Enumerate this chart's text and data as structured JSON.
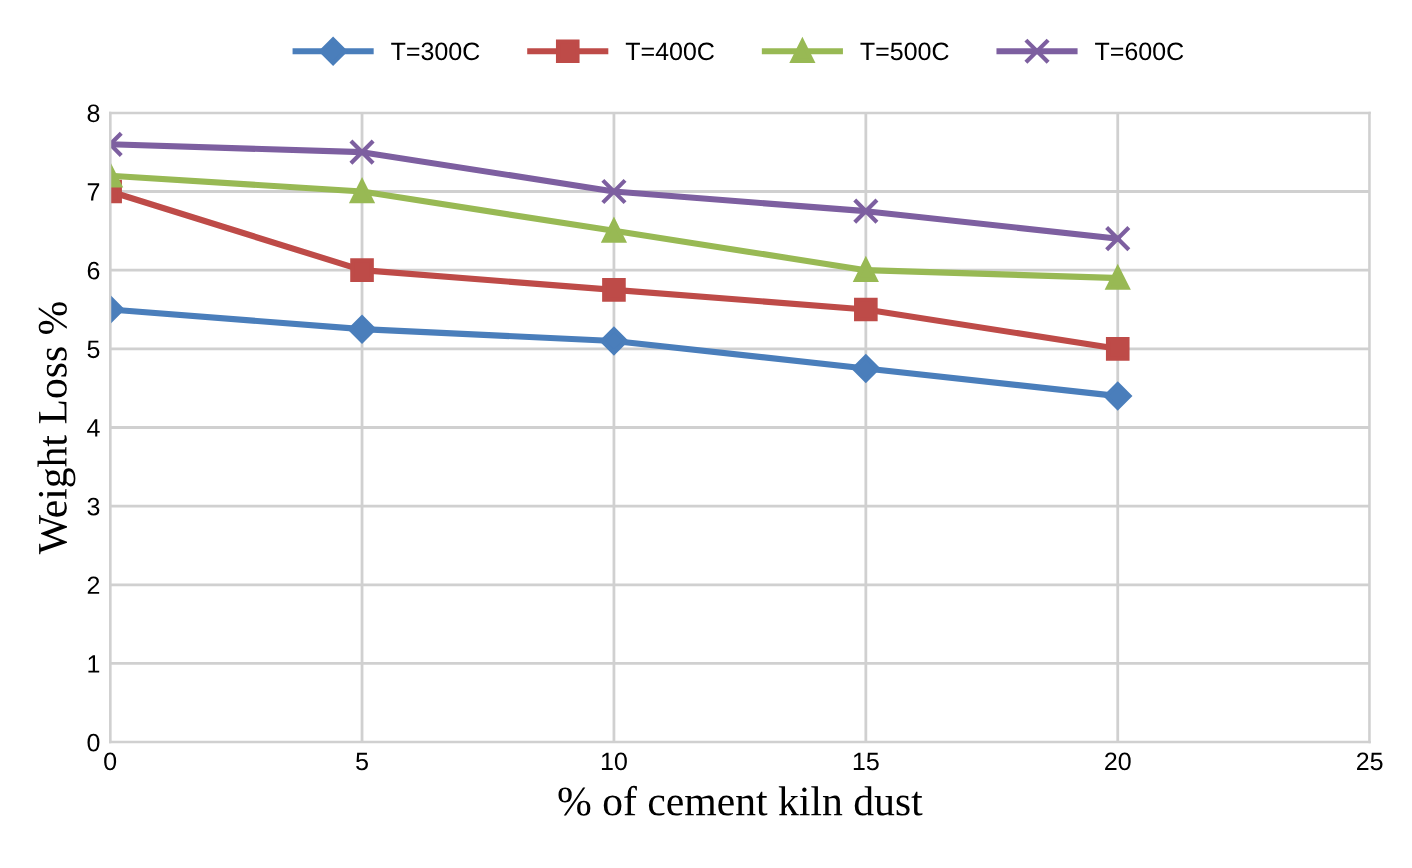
{
  "chart_data": {
    "type": "line",
    "xlabel": "% of cement kiln dust",
    "ylabel": "Weight Loss %",
    "x": [
      0,
      5,
      10,
      15,
      20
    ],
    "series": [
      {
        "name": "T=300C",
        "color": "#4a7ebb",
        "marker": "diamond",
        "values": [
          5.5,
          5.25,
          5.1,
          4.75,
          4.4
        ]
      },
      {
        "name": "T=400C",
        "color": "#be4b48",
        "marker": "square",
        "values": [
          7.0,
          6.0,
          5.75,
          5.5,
          5.0
        ]
      },
      {
        "name": "T=500C",
        "color": "#98b954",
        "marker": "triangle",
        "values": [
          7.2,
          7.0,
          6.5,
          6.0,
          5.9
        ]
      },
      {
        "name": "T=600C",
        "color": "#7d5fa0",
        "marker": "cross",
        "values": [
          7.6,
          7.5,
          7.0,
          6.75,
          6.4
        ]
      }
    ],
    "xlim": [
      0,
      25
    ],
    "xticks": [
      0,
      5,
      10,
      15,
      20,
      25
    ],
    "ylim": [
      0,
      8
    ],
    "yticks": [
      0,
      1,
      2,
      3,
      4,
      5,
      6,
      7,
      8
    ],
    "grid": true,
    "legend": "top",
    "line_style": "solid"
  }
}
